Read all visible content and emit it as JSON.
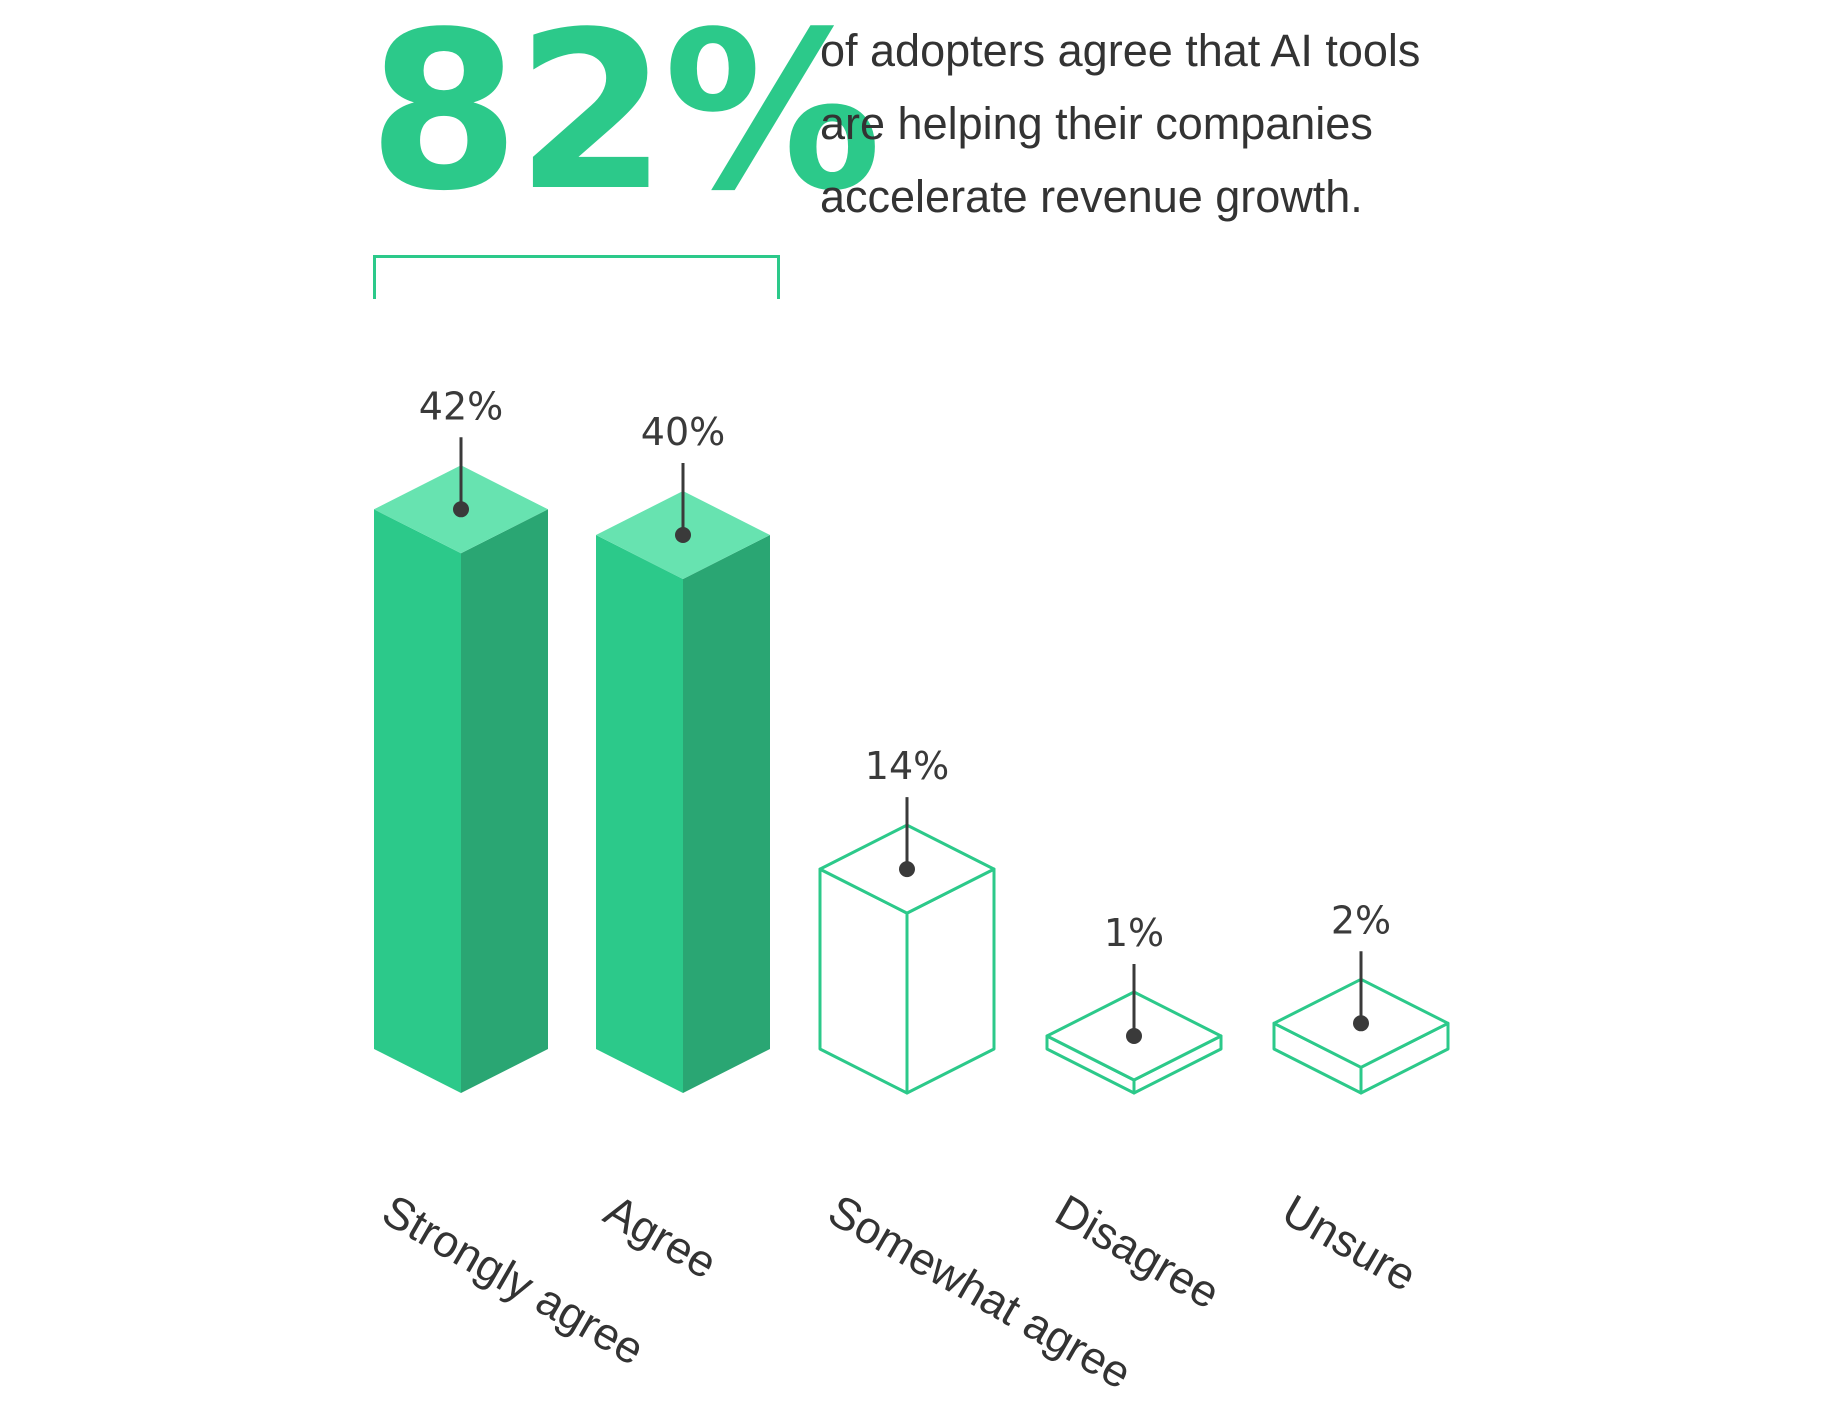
{
  "headline": {
    "value": "82%",
    "lines": [
      "of adopters agree that AI tools",
      "are helping their companies",
      "accelerate revenue growth."
    ]
  },
  "colors": {
    "green": "#2cc98a",
    "green_dark": "#2aa673",
    "green_top": "#67e3b0",
    "text": "#333333",
    "marker": "#3a3a3a"
  },
  "chart_data": {
    "type": "bar",
    "categories": [
      "Strongly agree",
      "Agree",
      "Somewhat agree",
      "Disagree",
      "Unsure"
    ],
    "values": [
      42,
      40,
      14,
      1,
      2
    ],
    "value_labels": [
      "42%",
      "40%",
      "14%",
      "1%",
      "2%"
    ],
    "filled": [
      true,
      true,
      false,
      false,
      false
    ],
    "unit": "%"
  }
}
